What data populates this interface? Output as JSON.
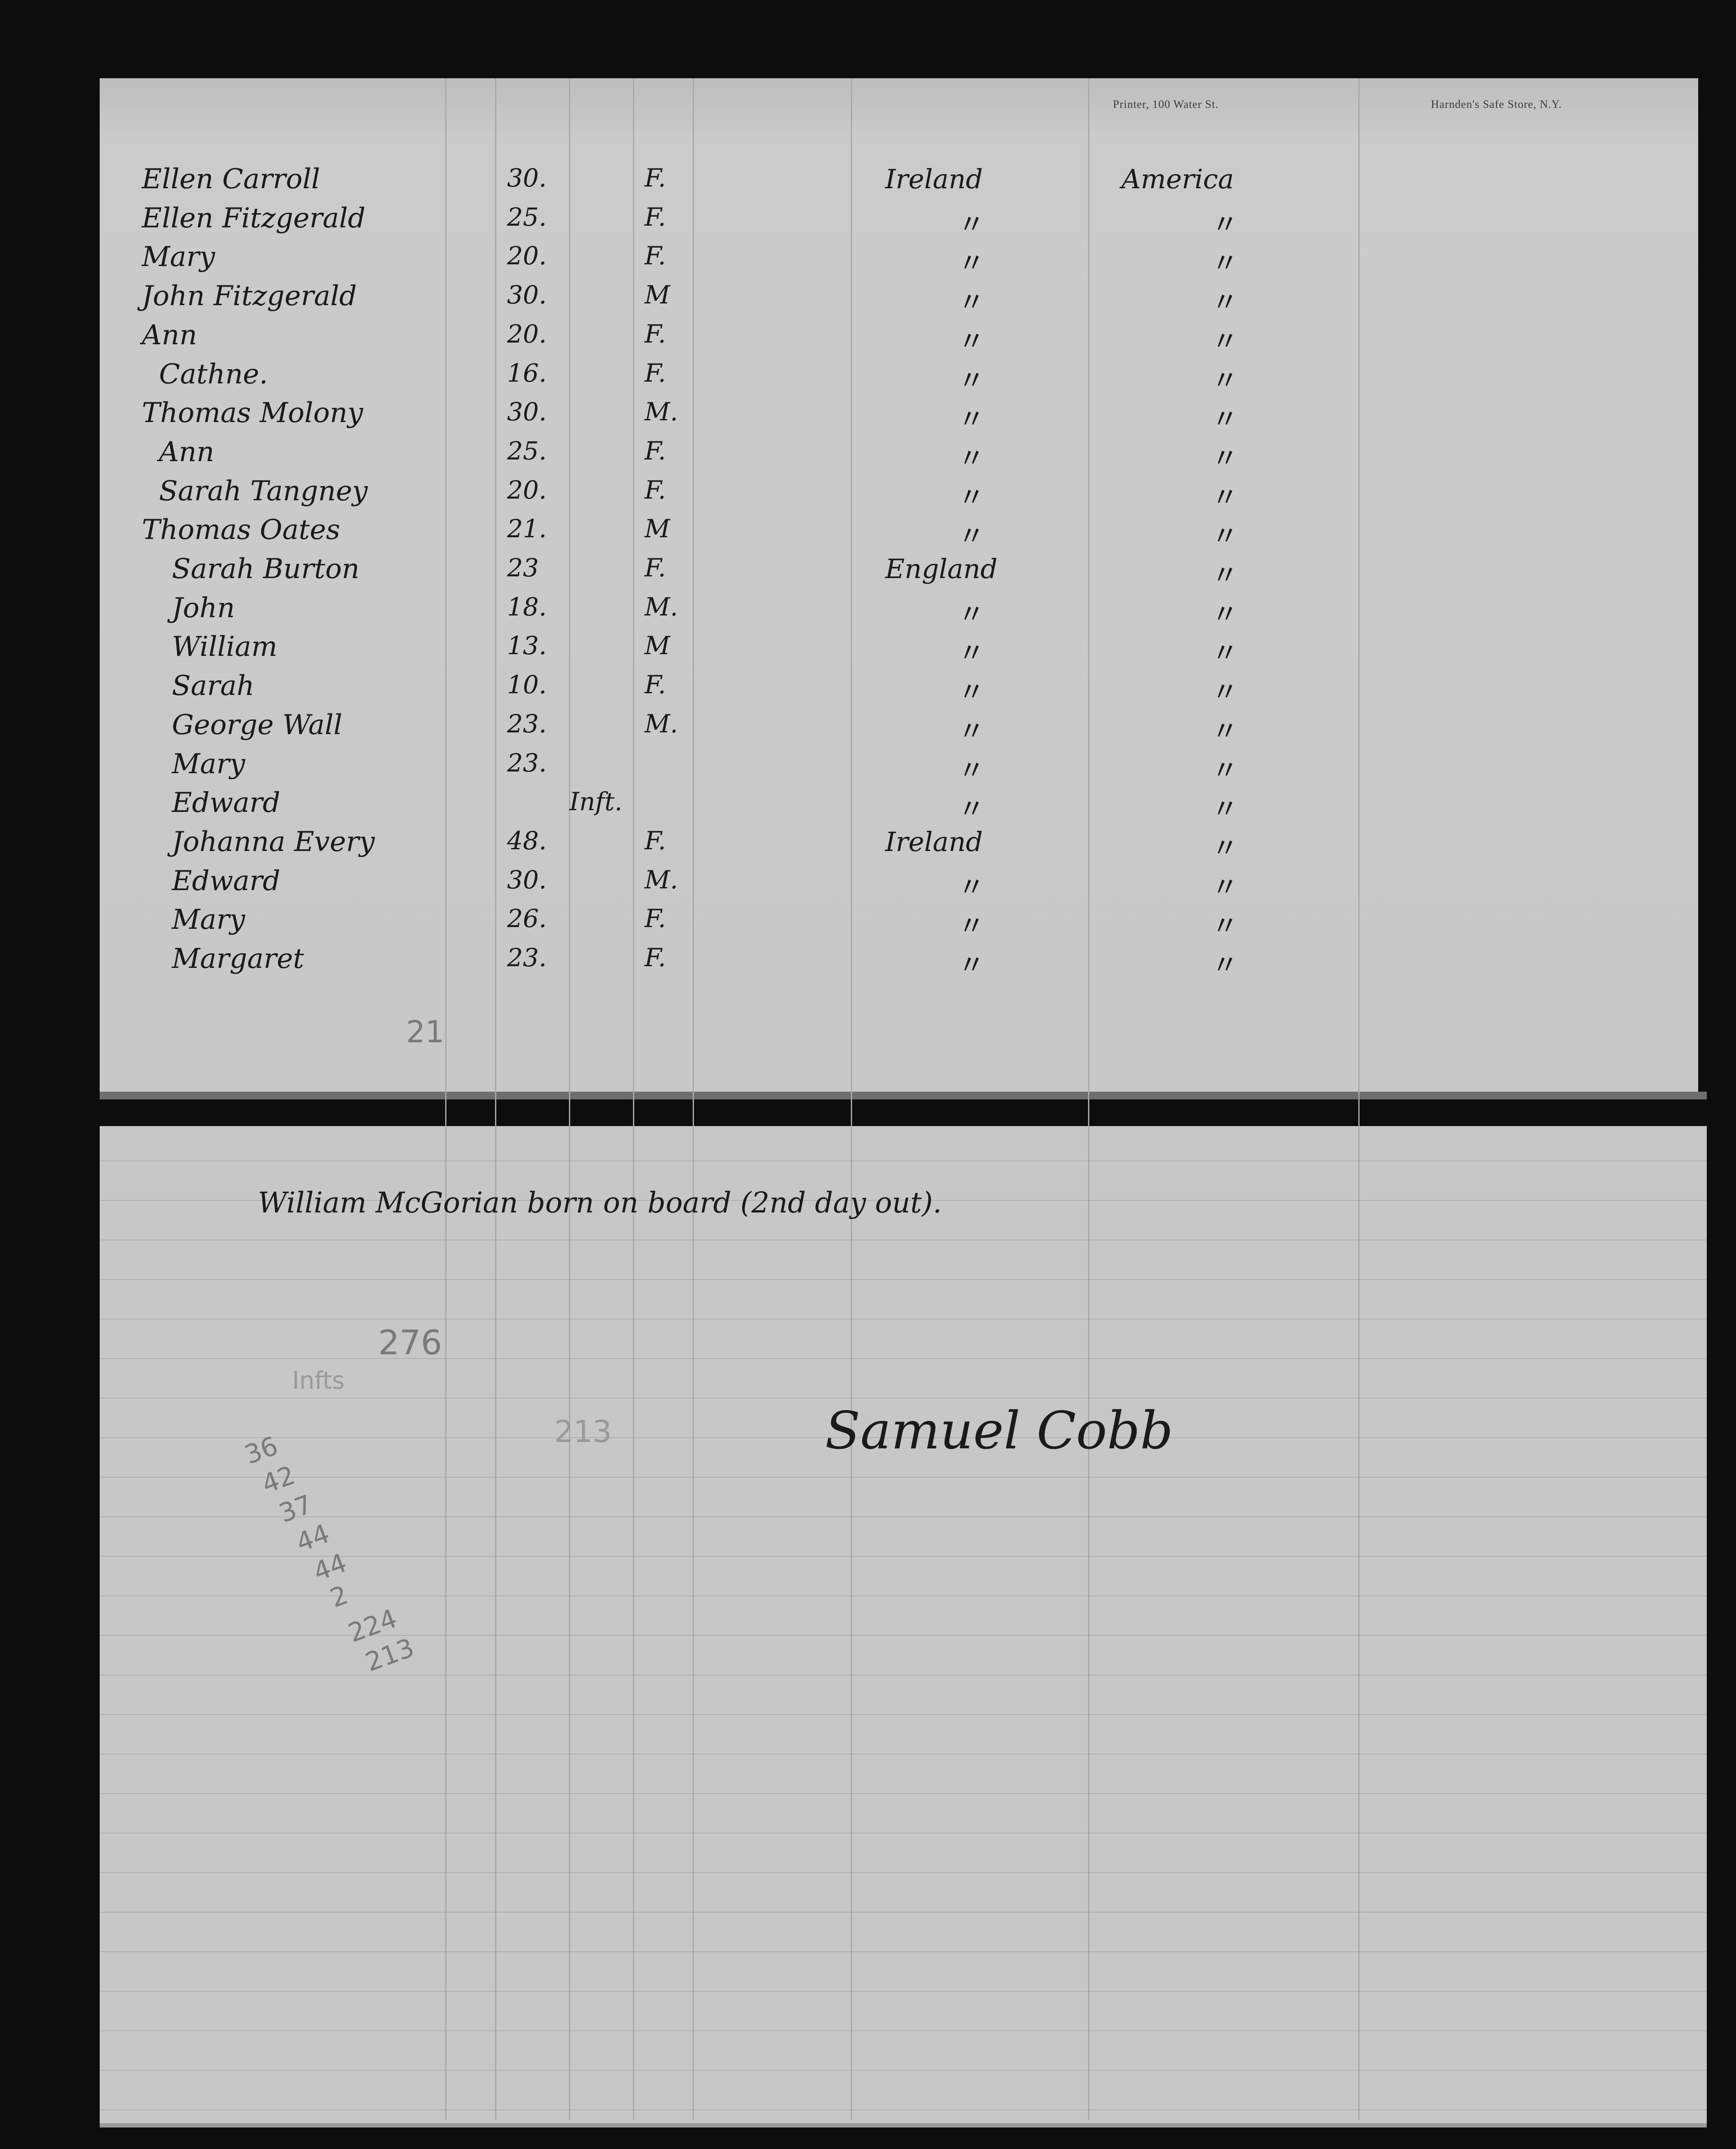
{
  "printed_header": {
    "left": "Printer, 100 Water St.",
    "right": "Harnden's Safe Store, N.Y."
  },
  "passengers": [
    {
      "name": "Ellen Carroll",
      "age": "30.",
      "sex": "F.",
      "country": "Ireland",
      "destination": "America"
    },
    {
      "name": "Ellen Fitzgerald",
      "age": "25.",
      "sex": "F.",
      "country": "〃",
      "destination": "〃"
    },
    {
      "name": "Mary",
      "age": "20.",
      "sex": "F.",
      "country": "〃",
      "destination": "〃"
    },
    {
      "name": "John Fitzgerald",
      "age": "30.",
      "sex": "M",
      "country": "〃",
      "destination": "〃"
    },
    {
      "name": "Ann",
      "age": "20.",
      "sex": "F.",
      "country": "〃",
      "destination": "〃"
    },
    {
      "name": "Cathne.",
      "age": "16.",
      "sex": "F.",
      "country": "〃",
      "destination": "〃"
    },
    {
      "name": "Thomas Molony",
      "age": "30.",
      "sex": "M.",
      "country": "〃",
      "destination": "〃"
    },
    {
      "name": "Ann",
      "age": "25.",
      "sex": "F.",
      "country": "〃",
      "destination": "〃"
    },
    {
      "name": "Sarah Tangney",
      "age": "20.",
      "sex": "F.",
      "country": "〃",
      "destination": "〃"
    },
    {
      "name": "Thomas Oates",
      "age": "21.",
      "sex": "M",
      "country": "〃",
      "destination": "〃"
    },
    {
      "name": "Sarah Burton",
      "age": "23",
      "sex": "F.",
      "country": "England",
      "destination": "〃"
    },
    {
      "name": "John",
      "age": "18.",
      "sex": "M.",
      "country": "〃",
      "destination": "〃"
    },
    {
      "name": "William",
      "age": "13.",
      "sex": "M",
      "country": "〃",
      "destination": "〃"
    },
    {
      "name": "Sarah",
      "age": "10.",
      "sex": "F.",
      "country": "〃",
      "destination": "〃"
    },
    {
      "name": "George Wall",
      "age": "23.",
      "sex": "M.",
      "country": "〃",
      "destination": "〃"
    },
    {
      "name": "Mary",
      "age": "23.",
      "sex": "",
      "country": "〃",
      "destination": "〃"
    },
    {
      "name": "Edward",
      "age": "",
      "infant": "Inft.",
      "sex": "",
      "country": "〃",
      "destination": "〃"
    },
    {
      "name": "Johanna Every",
      "age": "48.",
      "sex": "F.",
      "country": "Ireland",
      "destination": "〃"
    },
    {
      "name": "Edward",
      "age": "30.",
      "sex": "M.",
      "country": "〃",
      "destination": "〃"
    },
    {
      "name": "Mary",
      "age": "26.",
      "sex": "F.",
      "country": "〃",
      "destination": "〃"
    },
    {
      "name": "Margaret",
      "age": "23.",
      "sex": "F.",
      "country": "〃",
      "destination": "〃"
    }
  ],
  "pencil_count": "21",
  "birth_note": "William McGorian born on board (2nd day out).",
  "pencil_notes": {
    "total": "276",
    "infants": "Infts",
    "subtotal": "213",
    "column": [
      "36",
      "42",
      "37",
      "44",
      "44",
      "2",
      "224",
      "213"
    ]
  },
  "signature": "Samuel Cobb",
  "colors": {
    "paper": "#c9c9c9",
    "ink": "#1a1a1a",
    "pencil": "#7a7a7a",
    "background": "#0d0d0d"
  }
}
